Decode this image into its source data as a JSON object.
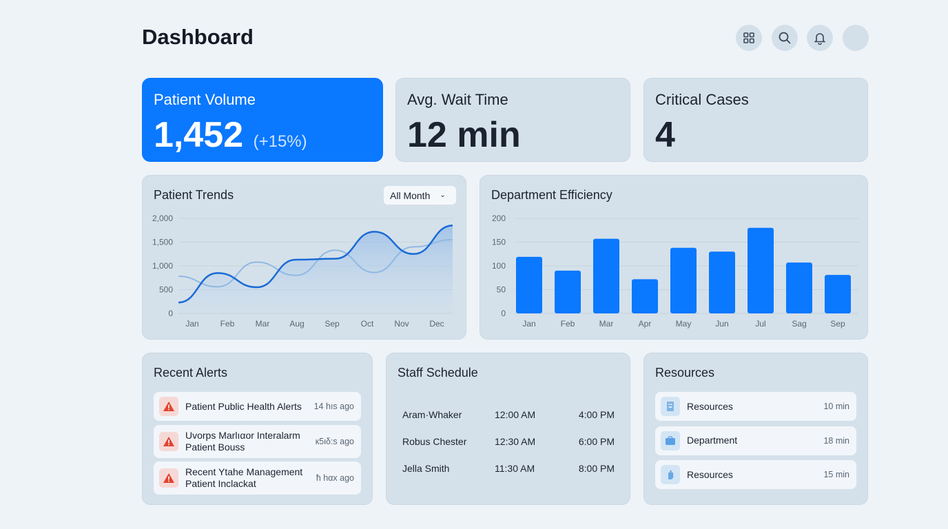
{
  "header": {
    "title": "Dashboard",
    "icons": [
      "grid-icon",
      "search-icon",
      "bell-icon",
      "avatar"
    ]
  },
  "kpis": [
    {
      "label": "Patient Volume",
      "value": "1,452",
      "delta": "(+15%)",
      "accent": "#0a78ff"
    },
    {
      "label": "Avg. Wait Time",
      "value": "12 min"
    },
    {
      "label": "Critical Cases",
      "value": "4"
    }
  ],
  "trends": {
    "title": "Patient Trends",
    "filter": "All Month"
  },
  "efficiency": {
    "title": "Department Efficiency"
  },
  "chart_data": [
    {
      "type": "line",
      "categories": [
        "Jan",
        "Feb",
        "Mar",
        "Aug",
        "Sep",
        "Oct",
        "Nov",
        "Dec"
      ],
      "ylim": [
        0,
        2000
      ],
      "yticks": [
        "0",
        "500",
        "1,000",
        "1,500",
        "2,000"
      ],
      "grid": true,
      "series": [
        {
          "values": [
            230,
            850,
            550,
            1130,
            1150,
            1720,
            1250,
            1850
          ],
          "color": "#1a6ad6"
        },
        {
          "values": [
            780,
            560,
            1080,
            800,
            1330,
            860,
            1400,
            1550
          ],
          "color": "#8fb8e4"
        }
      ]
    },
    {
      "type": "bar",
      "categories": [
        "Jan",
        "Feb",
        "Mar",
        "Apr",
        "May",
        "Jun",
        "Jul",
        "Sag",
        "Sep"
      ],
      "values": [
        119,
        90,
        157,
        72,
        138,
        130,
        180,
        107,
        81
      ],
      "ylim": [
        0,
        200
      ],
      "yticks": [
        "0",
        "50",
        "100",
        "150",
        "200"
      ],
      "grid": true,
      "color": "#0a78ff"
    }
  ],
  "alerts": {
    "title": "Recent Alerts",
    "items": [
      {
        "line1": "Patient Public Health Alerts",
        "line2": "",
        "time": "14 hıs ago"
      },
      {
        "line1": "Uvorps Marlıαor Interalarm",
        "line2": "Patient Bouss",
        "time": "к5ιδ:s ago"
      },
      {
        "line1": "Recent Ytahe Management",
        "line2": "Patient Inclackat",
        "time": "ħ hαx ago"
      }
    ]
  },
  "schedule": {
    "title": "Staff Schedule",
    "rows": [
      {
        "name": "Aram·Whaker",
        "start": "12:00 AM",
        "end": "4:00 PM"
      },
      {
        "name": "Robus Chester",
        "start": "12:30 AM",
        "end": "6:00 PM"
      },
      {
        "name": "Jella Smith",
        "start": "11:30 AM",
        "end": "8:00 PM"
      }
    ]
  },
  "resources": {
    "title": "Resources",
    "items": [
      {
        "label": "Resources",
        "time": "10 min",
        "icon": "building-icon"
      },
      {
        "label": "Department",
        "time": "18 min",
        "icon": "briefcase-icon"
      },
      {
        "label": "Resources",
        "time": "15 min",
        "icon": "hand-icon"
      }
    ]
  }
}
